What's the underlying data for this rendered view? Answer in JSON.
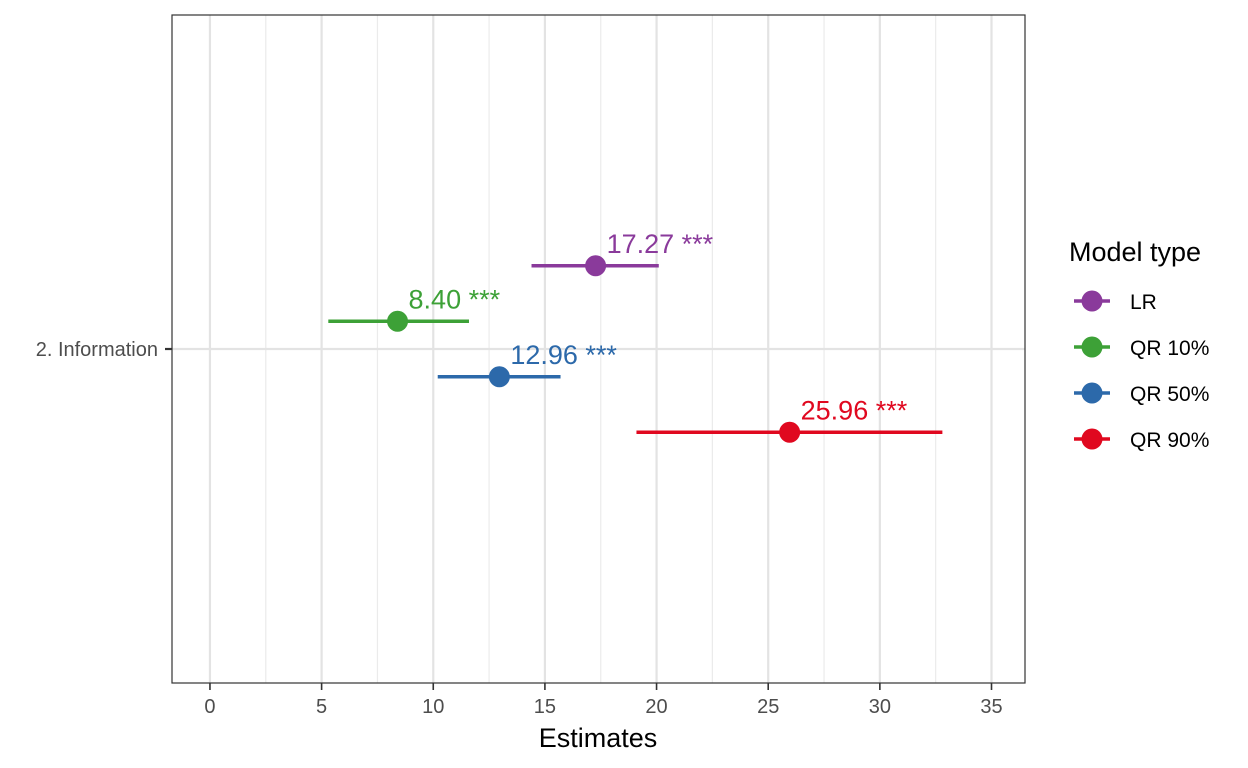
{
  "chart_data": {
    "type": "scatter",
    "subtype": "coefficient-plot-with-intervals",
    "title": "",
    "xlabel": "Estimates",
    "ylabel": "",
    "xlim": [
      -1.7,
      36.5
    ],
    "x_ticks": [
      0,
      5,
      10,
      15,
      20,
      25,
      30,
      35
    ],
    "x_tick_labels": [
      "0",
      "5",
      "10",
      "15",
      "20",
      "25",
      "30",
      "35"
    ],
    "categories": [
      "2. Information"
    ],
    "grid": true,
    "legend": {
      "title": "Model type",
      "position": "right"
    },
    "series": [
      {
        "name": "LR",
        "color": "#8a3a9b",
        "estimate": 17.27,
        "lower": 14.4,
        "upper": 20.1,
        "label": "17.27 ***"
      },
      {
        "name": "QR 10%",
        "color": "#3da137",
        "estimate": 8.4,
        "lower": 5.3,
        "upper": 11.6,
        "label": "8.40 ***"
      },
      {
        "name": "QR 50%",
        "color": "#2c69aa",
        "estimate": 12.96,
        "lower": 10.2,
        "upper": 15.7,
        "label": "12.96 ***"
      },
      {
        "name": "QR 90%",
        "color": "#e0081f",
        "estimate": 25.96,
        "lower": 19.1,
        "upper": 32.8,
        "label": "25.96 ***"
      }
    ]
  }
}
